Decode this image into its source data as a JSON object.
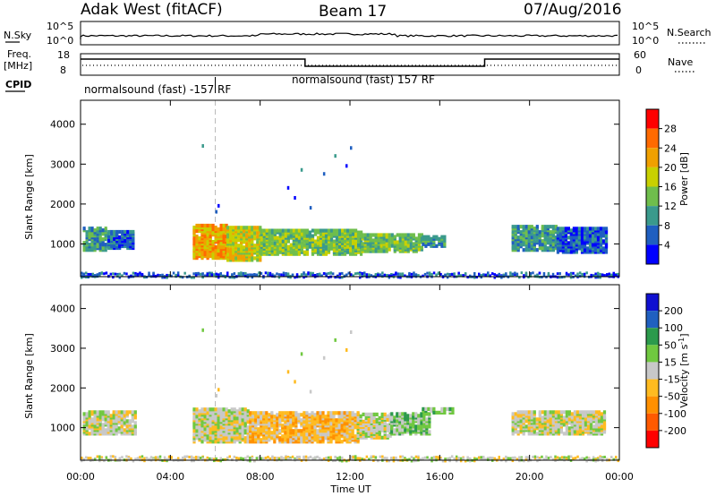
{
  "header": {
    "title": "Adak West (fitACF)",
    "beam": "Beam 17",
    "date": "07/Aug/2016"
  },
  "status_panel": {
    "nsky_label": "N.Sky",
    "nsky_ticks": [
      "10^5",
      "10^0"
    ],
    "nsearch_label": "N.Search",
    "nsearch_ticks": [
      "10^5",
      "10^0"
    ],
    "freq_label": "Freq.",
    "freq_unit": "[MHz]",
    "freq_ticks": [
      "18",
      "8"
    ],
    "nave_label": "Nave",
    "nave_ticks": [
      "60",
      "0"
    ],
    "cpid_label": "CPID",
    "cpid_entries": [
      {
        "text": "normalsound (fast) -157 RF",
        "start_hour": 0
      },
      {
        "text": "normalsound (fast) 157 RF",
        "start_hour": 6
      }
    ],
    "freq_steps": [
      {
        "from_hour": 0,
        "to_hour": 10,
        "level": "high"
      },
      {
        "from_hour": 10,
        "to_hour": 18,
        "level": "low"
      },
      {
        "from_hour": 18,
        "to_hour": 24,
        "level": "high"
      }
    ]
  },
  "chart_data": [
    {
      "type": "heatmap",
      "name": "power",
      "ylabel": "Slant Range [km]",
      "xlabel": "",
      "x_range_hours": [
        0,
        24
      ],
      "ylim": [
        180,
        4600
      ],
      "y_ticks": [
        1000,
        2000,
        3000,
        4000
      ],
      "colorbar_label": "Power [dB]",
      "colorbar_ticks": [
        "4",
        "8",
        "12",
        "16",
        "20",
        "24",
        "28"
      ],
      "colors": [
        "#0000ff",
        "#1f5fc0",
        "#3a9a8c",
        "#6fbe4c",
        "#c8d000",
        "#f0a000",
        "#ff6a00",
        "#ff0000"
      ],
      "echo_regions": [
        {
          "from_hour": 0.1,
          "to_hour": 1.2,
          "range_min": 850,
          "range_max": 1400,
          "level": 2
        },
        {
          "from_hour": 1.2,
          "to_hour": 2.4,
          "range_min": 900,
          "range_max": 1350,
          "level": 1
        },
        {
          "from_hour": 5.0,
          "to_hour": 6.5,
          "range_min": 650,
          "range_max": 1500,
          "level": 5
        },
        {
          "from_hour": 6.5,
          "to_hour": 8.0,
          "range_min": 600,
          "range_max": 1450,
          "level": 4
        },
        {
          "from_hour": 8.0,
          "to_hour": 12.5,
          "range_min": 750,
          "range_max": 1350,
          "level": 3
        },
        {
          "from_hour": 12.5,
          "to_hour": 15.2,
          "range_min": 820,
          "range_max": 1250,
          "level": 3
        },
        {
          "from_hour": 15.2,
          "to_hour": 16.2,
          "range_min": 950,
          "range_max": 1200,
          "level": 2
        },
        {
          "from_hour": 19.2,
          "to_hour": 21.2,
          "range_min": 850,
          "range_max": 1450,
          "level": 2
        },
        {
          "from_hour": 21.2,
          "to_hour": 23.4,
          "range_min": 800,
          "range_max": 1400,
          "level": 1
        }
      ]
    },
    {
      "type": "heatmap",
      "name": "velocity",
      "ylabel": "Slant Range [km]",
      "xlabel": "Time UT",
      "x_range_hours": [
        0,
        24
      ],
      "ylim": [
        180,
        4600
      ],
      "y_ticks": [
        1000,
        2000,
        3000,
        4000
      ],
      "x_tick_labels": [
        "00:00",
        "04:00",
        "08:00",
        "12:00",
        "16:00",
        "20:00",
        "00:00"
      ],
      "colorbar_label": "Velocity [m s^-1]",
      "colorbar_ticks": [
        "-200",
        "-100",
        "-50",
        "-15",
        "15",
        "50",
        "100",
        "200"
      ],
      "colors": [
        "#ff0000",
        "#ff5a00",
        "#ff9000",
        "#ffbb20",
        "#c8c8c8",
        "#70c840",
        "#2c9a4c",
        "#2060c0",
        "#1010d0"
      ],
      "echo_regions": [
        {
          "from_hour": 0.1,
          "to_hour": 2.4,
          "range_min": 850,
          "range_max": 1400,
          "level": 4
        },
        {
          "from_hour": 5.0,
          "to_hour": 7.5,
          "range_min": 650,
          "range_max": 1500,
          "level": 4
        },
        {
          "from_hour": 7.5,
          "to_hour": 12.3,
          "range_min": 650,
          "range_max": 1400,
          "level": 3
        },
        {
          "from_hour": 12.3,
          "to_hour": 13.8,
          "range_min": 750,
          "range_max": 1350,
          "level": 4
        },
        {
          "from_hour": 13.8,
          "to_hour": 15.5,
          "range_min": 850,
          "range_max": 1350,
          "level": 5
        },
        {
          "from_hour": 15.2,
          "to_hour": 16.6,
          "range_min": 1380,
          "range_max": 1480,
          "level": 5
        },
        {
          "from_hour": 19.2,
          "to_hour": 23.4,
          "range_min": 850,
          "range_max": 1400,
          "level": 4
        }
      ]
    }
  ]
}
